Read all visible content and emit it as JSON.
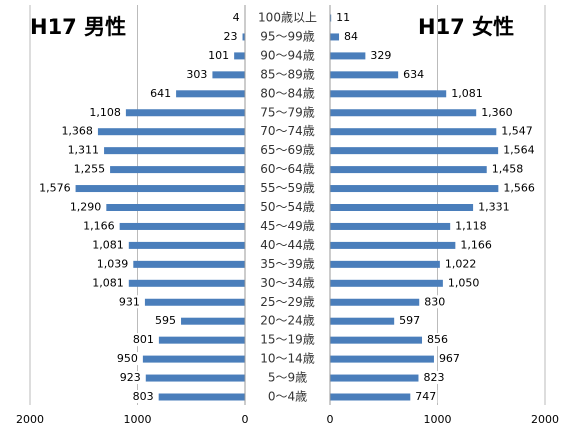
{
  "chart_data": {
    "type": "pyramid",
    "categories": [
      "0～4歳",
      "5～9歳",
      "10～14歳",
      "15～19歳",
      "20～24歳",
      "25～29歳",
      "30～34歳",
      "35～39歳",
      "40～44歳",
      "45～49歳",
      "50～54歳",
      "55～59歳",
      "60～64歳",
      "65～69歳",
      "70～74歳",
      "75～79歳",
      "80～84歳",
      "85～89歳",
      "90～94歳",
      "95～99歳",
      "100歳以上"
    ],
    "series": [
      {
        "name": "H17 男性",
        "color": "#4a7ebb",
        "side": "left",
        "values": [
          803,
          923,
          950,
          801,
          595,
          931,
          1081,
          1039,
          1081,
          1166,
          1290,
          1576,
          1255,
          1311,
          1368,
          1108,
          641,
          303,
          101,
          23,
          4
        ],
        "value_labels": [
          "803",
          "923",
          "950",
          "801",
          "595",
          "931",
          "1,081",
          "1,039",
          "1,081",
          "1,166",
          "1,290",
          "1,576",
          "1,255",
          "1,311",
          "1,368",
          "1,108",
          "641",
          "303",
          "101",
          "23",
          "4"
        ]
      },
      {
        "name": "H17 女性",
        "color": "#4a7ebb",
        "side": "right",
        "values": [
          747,
          823,
          967,
          856,
          597,
          830,
          1050,
          1022,
          1166,
          1118,
          1331,
          1566,
          1458,
          1564,
          1547,
          1360,
          1081,
          634,
          329,
          84,
          11
        ],
        "value_labels": [
          "747",
          "823",
          "967",
          "856",
          "597",
          "830",
          "1,050",
          "1,022",
          "1,166",
          "1,118",
          "1,331",
          "1,566",
          "1,458",
          "1,564",
          "1,547",
          "1,360",
          "1,081",
          "634",
          "329",
          "84",
          "11"
        ]
      }
    ],
    "xlim": [
      0,
      2000
    ],
    "xticks": [
      0,
      1000,
      2000
    ],
    "grid": true
  }
}
